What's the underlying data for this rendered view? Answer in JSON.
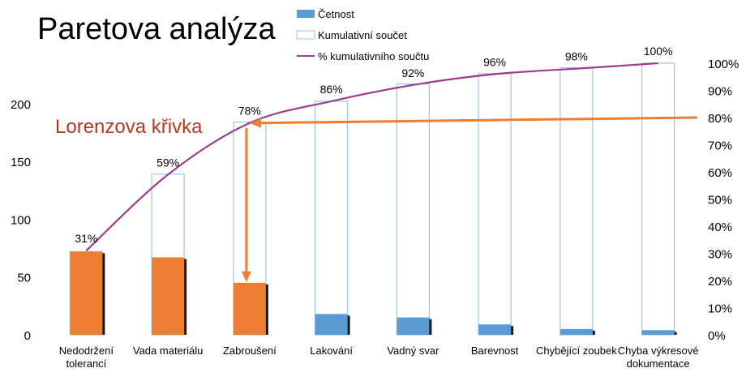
{
  "title": "Paretova analýza",
  "annotation": "Lorenzova křivka",
  "colors": {
    "bar_highlight": "#ED7D31",
    "bar_normal": "#5B9BD5",
    "cumulative_outline": "#9DC3E6",
    "curve": "#9B3C8C",
    "arrow": "#ED7D31",
    "text": "#000000",
    "annotation_text": "#B33A1F"
  },
  "chart_data": {
    "type": "bar",
    "categories": [
      "Nedodržení tolerancí",
      "Vada materiálu",
      "Zabroušení",
      "Lakování",
      "Vadný svar",
      "Barevnost",
      "Chybějící zoubek",
      "Chyba výkresové dokumentace"
    ],
    "category_lines": [
      [
        "Nedodržení",
        "tolerancí"
      ],
      [
        "Vada materiálu"
      ],
      [
        "Zabroušení"
      ],
      [
        "Lakování"
      ],
      [
        "Vadný svar"
      ],
      [
        "Barevnost"
      ],
      [
        "Chybějící zoubek"
      ],
      [
        "Chyba výkresové",
        "dokumentace"
      ]
    ],
    "series": [
      {
        "name": "Četnost",
        "type": "bar",
        "values": [
          72,
          67,
          45,
          18,
          15,
          9,
          5,
          4
        ]
      },
      {
        "name": "Kumulativní součet",
        "type": "bar-outline",
        "values": [
          72,
          139,
          184,
          202,
          217,
          226,
          231,
          235
        ]
      },
      {
        "name": "% kumulativního součtu",
        "type": "line",
        "axis": "right",
        "values": [
          31,
          59,
          78,
          86,
          92,
          96,
          98,
          100
        ],
        "labels": [
          "31%",
          "59%",
          "78%",
          "86%",
          "92%",
          "96%",
          "98%",
          "100%"
        ]
      }
    ],
    "highlighted_count": 3,
    "y_left": {
      "min": 0,
      "max": 235,
      "ticks": [
        0,
        50,
        100,
        150,
        200
      ]
    },
    "y_right": {
      "min": 0,
      "max": 100,
      "ticks": [
        0,
        10,
        20,
        30,
        40,
        50,
        60,
        70,
        80,
        90,
        100
      ],
      "tick_labels": [
        "0%",
        "10%",
        "20%",
        "30%",
        "40%",
        "50%",
        "60%",
        "70%",
        "80%",
        "90%",
        "100%"
      ]
    },
    "reference_percent": 80,
    "grid": false,
    "legend_position": "top"
  }
}
